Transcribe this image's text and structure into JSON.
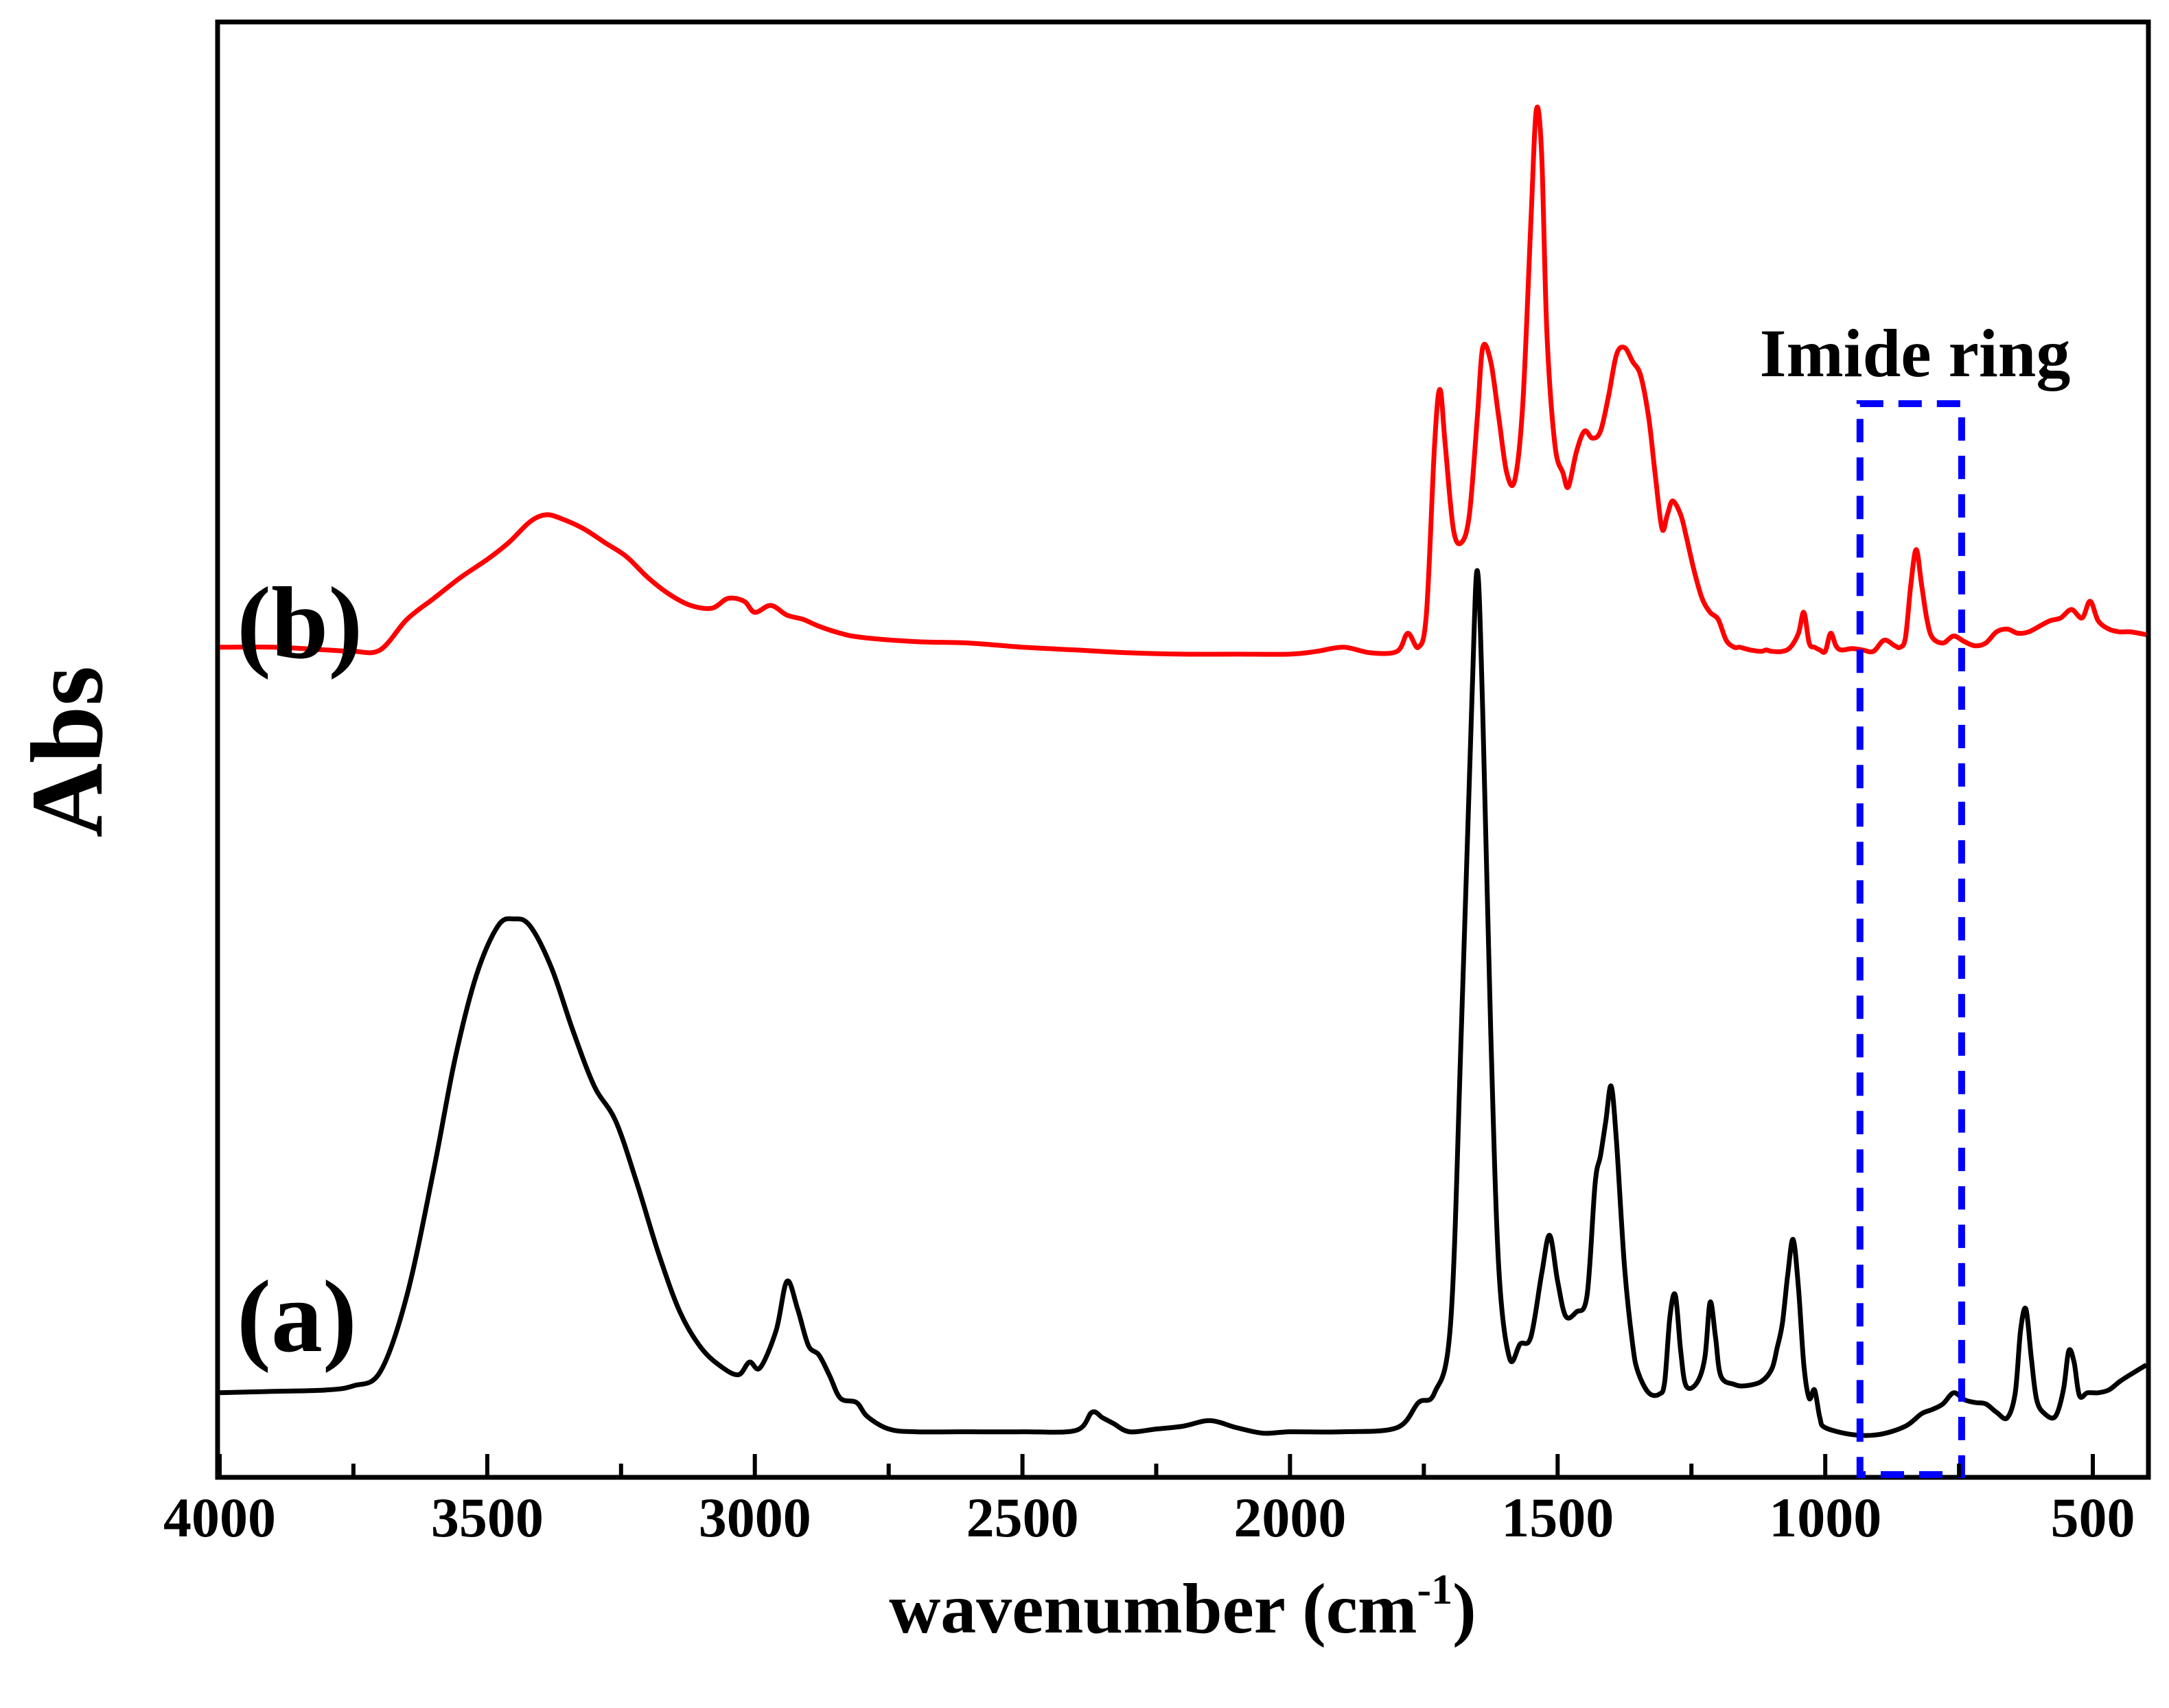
{
  "chart_data": {
    "type": "line",
    "title": "",
    "xlabel": "wavenumber (cm",
    "xlabel_sup": "-1",
    "xlabel_close": ")",
    "ylabel": "Abs",
    "xlim": [
      4000,
      400
    ],
    "ylim": [
      0,
      100
    ],
    "x_reversed": true,
    "y_ticks_shown": false,
    "grid": false,
    "xticks": [
      4000,
      3500,
      3000,
      2500,
      2000,
      1500,
      1000,
      500
    ],
    "xtick_labels": [
      "4000",
      "3500",
      "3000",
      "2500",
      "2000",
      "1500",
      "1000",
      "500"
    ],
    "series": [
      {
        "name": "(a)",
        "label": "(a)",
        "color": "#000000",
        "points": [
          [
            4000,
            4.0
          ],
          [
            3900,
            4.1
          ],
          [
            3800,
            4.2
          ],
          [
            3750,
            4.5
          ],
          [
            3700,
            5.5
          ],
          [
            3650,
            11
          ],
          [
            3600,
            20
          ],
          [
            3560,
            28
          ],
          [
            3520,
            34
          ],
          [
            3480,
            37.5
          ],
          [
            3450,
            38
          ],
          [
            3420,
            37.5
          ],
          [
            3380,
            34.5
          ],
          [
            3340,
            30
          ],
          [
            3300,
            26
          ],
          [
            3260,
            23.5
          ],
          [
            3220,
            19
          ],
          [
            3180,
            14
          ],
          [
            3140,
            9.8
          ],
          [
            3100,
            7.2
          ],
          [
            3060,
            5.8
          ],
          [
            3030,
            5.3
          ],
          [
            3010,
            6.2
          ],
          [
            2990,
            5.8
          ],
          [
            2960,
            8.5
          ],
          [
            2940,
            12
          ],
          [
            2920,
            10
          ],
          [
            2900,
            7.4
          ],
          [
            2880,
            6.7
          ],
          [
            2860,
            5.2
          ],
          [
            2840,
            3.6
          ],
          [
            2810,
            3.3
          ],
          [
            2790,
            2.3
          ],
          [
            2750,
            1.4
          ],
          [
            2700,
            1.2
          ],
          [
            2600,
            1.2
          ],
          [
            2500,
            1.2
          ],
          [
            2400,
            1.3
          ],
          [
            2370,
            2.6
          ],
          [
            2350,
            2.2
          ],
          [
            2330,
            1.8
          ],
          [
            2300,
            1.2
          ],
          [
            2250,
            1.4
          ],
          [
            2200,
            1.6
          ],
          [
            2150,
            2.0
          ],
          [
            2100,
            1.5
          ],
          [
            2050,
            1.1
          ],
          [
            2000,
            1.2
          ],
          [
            1900,
            1.2
          ],
          [
            1800,
            1.5
          ],
          [
            1760,
            3.3
          ],
          [
            1730,
            4.0
          ],
          [
            1700,
            9
          ],
          [
            1680,
            30
          ],
          [
            1660,
            54
          ],
          [
            1650,
            63
          ],
          [
            1640,
            53
          ],
          [
            1625,
            30
          ],
          [
            1610,
            13
          ],
          [
            1590,
            6.5
          ],
          [
            1570,
            7.5
          ],
          [
            1550,
            8
          ],
          [
            1530,
            12.5
          ],
          [
            1515,
            15.3
          ],
          [
            1500,
            12
          ],
          [
            1485,
            9.5
          ],
          [
            1465,
            9.8
          ],
          [
            1445,
            11
          ],
          [
            1430,
            19
          ],
          [
            1420,
            21
          ],
          [
            1410,
            23.5
          ],
          [
            1400,
            26
          ],
          [
            1390,
            22
          ],
          [
            1375,
            13
          ],
          [
            1360,
            7.5
          ],
          [
            1350,
            5.5
          ],
          [
            1330,
            4.0
          ],
          [
            1310,
            3.9
          ],
          [
            1300,
            4.8
          ],
          [
            1290,
            9.5
          ],
          [
            1280,
            11
          ],
          [
            1270,
            7
          ],
          [
            1260,
            4.5
          ],
          [
            1240,
            4.7
          ],
          [
            1225,
            6.5
          ],
          [
            1215,
            10.5
          ],
          [
            1205,
            8
          ],
          [
            1195,
            5.2
          ],
          [
            1170,
            4.6
          ],
          [
            1150,
            4.5
          ],
          [
            1120,
            4.8
          ],
          [
            1100,
            5.7
          ],
          [
            1090,
            7.2
          ],
          [
            1080,
            9
          ],
          [
            1070,
            12.5
          ],
          [
            1060,
            15
          ],
          [
            1050,
            11.5
          ],
          [
            1040,
            6
          ],
          [
            1030,
            3.6
          ],
          [
            1020,
            4.2
          ],
          [
            1010,
            2.2
          ],
          [
            1000,
            1.5
          ],
          [
            950,
            1.0
          ],
          [
            900,
            1.0
          ],
          [
            850,
            1.6
          ],
          [
            820,
            2.5
          ],
          [
            800,
            2.8
          ],
          [
            780,
            3.2
          ],
          [
            760,
            4.0
          ],
          [
            740,
            3.5
          ],
          [
            720,
            3.3
          ],
          [
            700,
            3.2
          ],
          [
            680,
            2.6
          ],
          [
            660,
            2.2
          ],
          [
            645,
            4.0
          ],
          [
            635,
            8.5
          ],
          [
            625,
            10
          ],
          [
            615,
            6.5
          ],
          [
            605,
            3.5
          ],
          [
            590,
            2.5
          ],
          [
            570,
            2.3
          ],
          [
            555,
            4.2
          ],
          [
            545,
            7
          ],
          [
            535,
            6.2
          ],
          [
            525,
            3.8
          ],
          [
            510,
            4.0
          ],
          [
            490,
            4.0
          ],
          [
            470,
            4.2
          ],
          [
            450,
            4.8
          ],
          [
            430,
            5.3
          ],
          [
            400,
            6
          ]
        ]
      },
      {
        "name": "(b)",
        "label": "(b)",
        "color": "#ff0000",
        "points": [
          [
            4000,
            57.5
          ],
          [
            3900,
            57.5
          ],
          [
            3800,
            57.3
          ],
          [
            3750,
            57.2
          ],
          [
            3700,
            57.3
          ],
          [
            3650,
            59.5
          ],
          [
            3600,
            61
          ],
          [
            3550,
            62.5
          ],
          [
            3500,
            63.8
          ],
          [
            3460,
            65
          ],
          [
            3420,
            66.5
          ],
          [
            3390,
            67
          ],
          [
            3360,
            66.7
          ],
          [
            3320,
            66
          ],
          [
            3280,
            65
          ],
          [
            3240,
            64
          ],
          [
            3200,
            62.5
          ],
          [
            3160,
            61.3
          ],
          [
            3120,
            60.5
          ],
          [
            3080,
            60.3
          ],
          [
            3050,
            61
          ],
          [
            3020,
            60.8
          ],
          [
            3000,
            60
          ],
          [
            2970,
            60.5
          ],
          [
            2940,
            59.8
          ],
          [
            2910,
            59.5
          ],
          [
            2880,
            59
          ],
          [
            2840,
            58.5
          ],
          [
            2800,
            58.2
          ],
          [
            2700,
            57.9
          ],
          [
            2600,
            57.8
          ],
          [
            2500,
            57.5
          ],
          [
            2400,
            57.3
          ],
          [
            2300,
            57.1
          ],
          [
            2200,
            57
          ],
          [
            2100,
            57
          ],
          [
            2000,
            57
          ],
          [
            1950,
            57.2
          ],
          [
            1900,
            57.5
          ],
          [
            1850,
            57.1
          ],
          [
            1800,
            57.2
          ],
          [
            1780,
            58.5
          ],
          [
            1760,
            57.5
          ],
          [
            1745,
            60
          ],
          [
            1730,
            72
          ],
          [
            1720,
            76
          ],
          [
            1710,
            72
          ],
          [
            1695,
            66
          ],
          [
            1680,
            65
          ],
          [
            1665,
            67
          ],
          [
            1650,
            74
          ],
          [
            1640,
            79
          ],
          [
            1625,
            78
          ],
          [
            1610,
            74
          ],
          [
            1595,
            70
          ],
          [
            1580,
            69.5
          ],
          [
            1565,
            75
          ],
          [
            1550,
            88
          ],
          [
            1540,
            96
          ],
          [
            1530,
            93
          ],
          [
            1520,
            80
          ],
          [
            1505,
            72
          ],
          [
            1490,
            70
          ],
          [
            1480,
            69
          ],
          [
            1465,
            71.5
          ],
          [
            1450,
            73
          ],
          [
            1435,
            72.5
          ],
          [
            1420,
            73
          ],
          [
            1405,
            75.5
          ],
          [
            1390,
            78.5
          ],
          [
            1375,
            79
          ],
          [
            1360,
            78
          ],
          [
            1345,
            77
          ],
          [
            1330,
            74
          ],
          [
            1318,
            70
          ],
          [
            1305,
            66
          ],
          [
            1295,
            67
          ],
          [
            1285,
            68
          ],
          [
            1270,
            67
          ],
          [
            1260,
            65.5
          ],
          [
            1245,
            63
          ],
          [
            1230,
            61
          ],
          [
            1215,
            60
          ],
          [
            1200,
            59.5
          ],
          [
            1185,
            58
          ],
          [
            1170,
            57.5
          ],
          [
            1160,
            57.5
          ],
          [
            1150,
            57.4
          ],
          [
            1140,
            57.3
          ],
          [
            1120,
            57.2
          ],
          [
            1110,
            57.3
          ],
          [
            1100,
            57.2
          ],
          [
            1080,
            57.2
          ],
          [
            1065,
            57.5
          ],
          [
            1050,
            58.5
          ],
          [
            1040,
            60
          ],
          [
            1030,
            57.8
          ],
          [
            1020,
            57.5
          ],
          [
            1010,
            57.3
          ],
          [
            1000,
            57.2
          ],
          [
            990,
            58.5
          ],
          [
            980,
            57.6
          ],
          [
            970,
            57.3
          ],
          [
            950,
            57.4
          ],
          [
            930,
            57.3
          ],
          [
            910,
            57.2
          ],
          [
            890,
            58
          ],
          [
            870,
            57.6
          ],
          [
            860,
            57.5
          ],
          [
            850,
            58.2
          ],
          [
            840,
            62
          ],
          [
            830,
            64.5
          ],
          [
            820,
            62
          ],
          [
            810,
            59.5
          ],
          [
            800,
            58.2
          ],
          [
            780,
            57.8
          ],
          [
            760,
            58.3
          ],
          [
            740,
            57.9
          ],
          [
            720,
            57.6
          ],
          [
            700,
            57.8
          ],
          [
            680,
            58.6
          ],
          [
            660,
            58.8
          ],
          [
            640,
            58.5
          ],
          [
            620,
            58.6
          ],
          [
            600,
            59
          ],
          [
            580,
            59.4
          ],
          [
            560,
            59.6
          ],
          [
            540,
            60.2
          ],
          [
            520,
            59.6
          ],
          [
            505,
            60.8
          ],
          [
            490,
            59.4
          ],
          [
            470,
            58.8
          ],
          [
            450,
            58.6
          ],
          [
            430,
            58.6
          ],
          [
            400,
            58.4
          ]
        ]
      }
    ],
    "annotation": {
      "text": "Imide ring",
      "box_x_range": [
        935,
        745
      ],
      "box_color": "#0000ff"
    }
  }
}
